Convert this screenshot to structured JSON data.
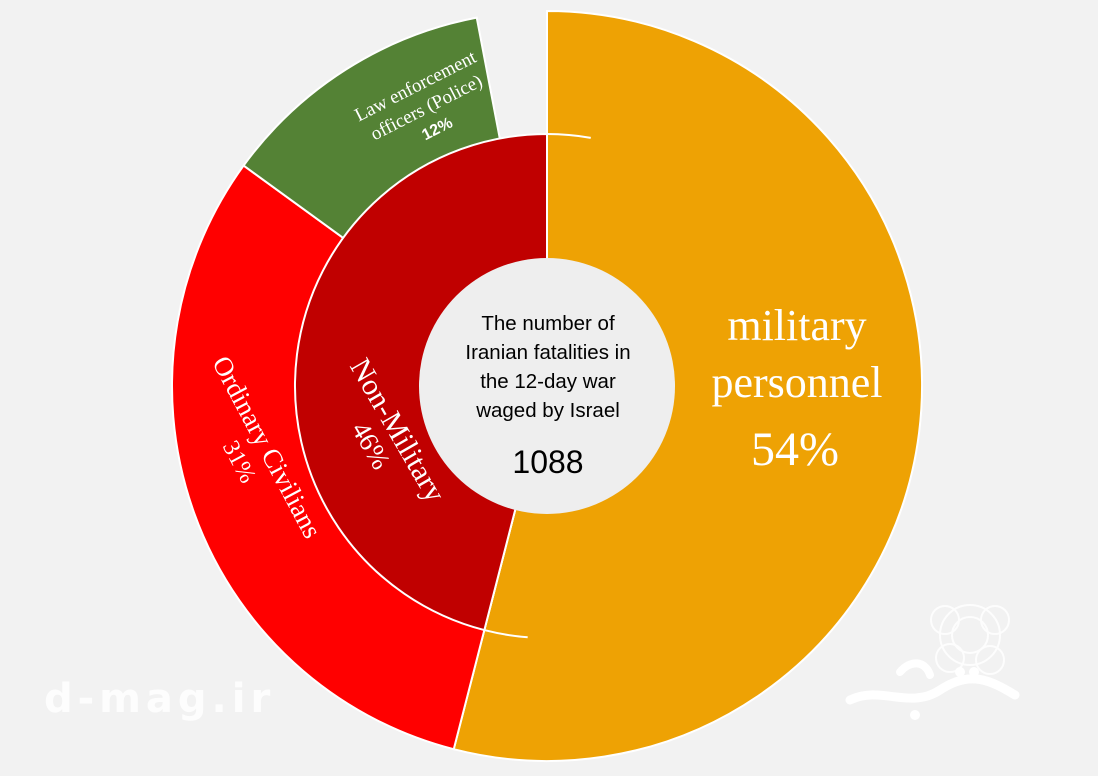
{
  "chart_data": {
    "type": "pie",
    "center_label": {
      "lines": [
        "The number of",
        "Iranian fatalities in",
        "the 12-day war",
        "waged by Israel"
      ],
      "total": "1088"
    },
    "inner_ring": [
      {
        "label": "Non-Military",
        "value": 46,
        "value_text": "46%",
        "color": "#C00000"
      }
    ],
    "outer_ring": [
      {
        "label": "military personnel",
        "label_lines": [
          "military",
          "personnel"
        ],
        "value": 54,
        "value_text": "54%",
        "color": "#EEA204"
      },
      {
        "label": "Ordinary Civilians",
        "value": 31,
        "value_text": "31%",
        "color": "#FF0000"
      },
      {
        "label": "Law enforcement officers (Police)",
        "label_lines": [
          "Law enforcement",
          "officers (Police)"
        ],
        "value": 12,
        "value_text": "12%",
        "color": "#548235"
      }
    ]
  },
  "watermark": "d-mag.ir",
  "colors": {
    "background": "#f2f2f2",
    "center": "#eeeeee",
    "separator": "#ffffff"
  }
}
